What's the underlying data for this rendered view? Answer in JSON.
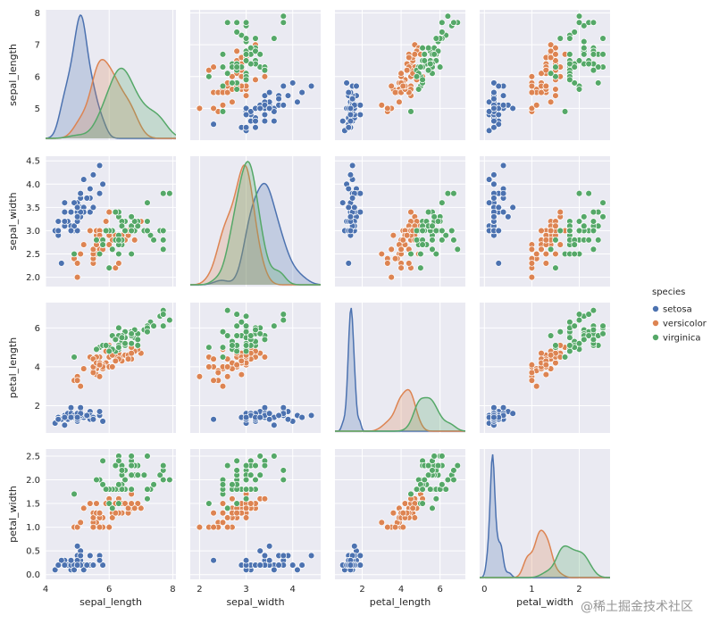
{
  "chart_data": {
    "type": "pairplot",
    "variables": [
      "sepal_length",
      "sepal_width",
      "petal_length",
      "petal_width"
    ],
    "ranges": {
      "sepal_length": [
        4.0,
        8.1
      ],
      "sepal_width": [
        1.8,
        4.6
      ],
      "petal_length": [
        0.6,
        7.3
      ],
      "petal_width": [
        -0.1,
        2.65
      ]
    },
    "kde_x_ranges": {
      "sepal_length": [
        3.8,
        8.3
      ],
      "sepal_width": [
        1.5,
        4.85
      ],
      "petal_length": [
        0.6,
        7.5
      ],
      "petal_width": [
        -0.1,
        2.95
      ]
    },
    "ticks": {
      "sepal_length": [
        4,
        6,
        8
      ],
      "sepal_width": [
        2,
        3,
        4,
        5
      ],
      "petal_length": [
        2,
        4,
        6,
        8
      ],
      "petal_width": [
        0,
        1,
        2
      ]
    },
    "y_ticks": {
      "sepal_length": [
        "5",
        "6",
        "7",
        "8"
      ],
      "sepal_width": [
        "2.0",
        "2.5",
        "3.0",
        "3.5",
        "4.0",
        "4.5"
      ],
      "petal_length": [
        "2",
        "4",
        "6"
      ],
      "petal_width": [
        "0.0",
        "0.5",
        "1.0",
        "1.5",
        "2.0",
        "2.5"
      ]
    },
    "legend": {
      "title": "species",
      "placement": "center-right",
      "entries": [
        "setosa",
        "versicolor",
        "virginica"
      ]
    },
    "species_colors": {
      "setosa": "#4c72b0",
      "versicolor": "#dd8452",
      "virginica": "#55a868"
    },
    "grid": true,
    "data": {
      "setosa": [
        [
          5.1,
          3.5,
          1.4,
          0.2
        ],
        [
          4.9,
          3.0,
          1.4,
          0.2
        ],
        [
          4.7,
          3.2,
          1.3,
          0.2
        ],
        [
          4.6,
          3.1,
          1.5,
          0.2
        ],
        [
          5.0,
          3.6,
          1.4,
          0.2
        ],
        [
          5.4,
          3.9,
          1.7,
          0.4
        ],
        [
          4.6,
          3.4,
          1.4,
          0.3
        ],
        [
          5.0,
          3.4,
          1.5,
          0.2
        ],
        [
          4.4,
          2.9,
          1.4,
          0.2
        ],
        [
          4.9,
          3.1,
          1.5,
          0.1
        ],
        [
          5.4,
          3.7,
          1.5,
          0.2
        ],
        [
          4.8,
          3.4,
          1.6,
          0.2
        ],
        [
          4.8,
          3.0,
          1.4,
          0.1
        ],
        [
          4.3,
          3.0,
          1.1,
          0.1
        ],
        [
          5.8,
          4.0,
          1.2,
          0.2
        ],
        [
          5.7,
          4.4,
          1.5,
          0.4
        ],
        [
          5.4,
          3.9,
          1.3,
          0.4
        ],
        [
          5.1,
          3.5,
          1.4,
          0.3
        ],
        [
          5.7,
          3.8,
          1.7,
          0.3
        ],
        [
          5.1,
          3.8,
          1.5,
          0.3
        ],
        [
          5.4,
          3.4,
          1.7,
          0.2
        ],
        [
          5.1,
          3.7,
          1.5,
          0.4
        ],
        [
          4.6,
          3.6,
          1.0,
          0.2
        ],
        [
          5.1,
          3.3,
          1.7,
          0.5
        ],
        [
          4.8,
          3.4,
          1.9,
          0.2
        ],
        [
          5.0,
          3.0,
          1.6,
          0.2
        ],
        [
          5.0,
          3.4,
          1.6,
          0.4
        ],
        [
          5.2,
          3.5,
          1.5,
          0.2
        ],
        [
          5.2,
          3.4,
          1.4,
          0.2
        ],
        [
          4.7,
          3.2,
          1.6,
          0.2
        ],
        [
          4.8,
          3.1,
          1.6,
          0.2
        ],
        [
          5.4,
          3.4,
          1.5,
          0.4
        ],
        [
          5.2,
          4.1,
          1.5,
          0.1
        ],
        [
          5.5,
          4.2,
          1.4,
          0.2
        ],
        [
          4.9,
          3.1,
          1.5,
          0.2
        ],
        [
          5.0,
          3.2,
          1.2,
          0.2
        ],
        [
          5.5,
          3.5,
          1.3,
          0.2
        ],
        [
          4.9,
          3.6,
          1.4,
          0.1
        ],
        [
          4.4,
          3.0,
          1.3,
          0.2
        ],
        [
          5.1,
          3.4,
          1.5,
          0.2
        ],
        [
          5.0,
          3.5,
          1.3,
          0.3
        ],
        [
          4.5,
          2.3,
          1.3,
          0.3
        ],
        [
          4.4,
          3.2,
          1.3,
          0.2
        ],
        [
          5.0,
          3.5,
          1.6,
          0.6
        ],
        [
          5.1,
          3.8,
          1.9,
          0.4
        ],
        [
          4.8,
          3.0,
          1.4,
          0.3
        ],
        [
          5.1,
          3.8,
          1.6,
          0.2
        ],
        [
          4.6,
          3.2,
          1.4,
          0.2
        ],
        [
          5.3,
          3.7,
          1.5,
          0.2
        ],
        [
          5.0,
          3.3,
          1.4,
          0.2
        ]
      ],
      "versicolor": [
        [
          7.0,
          3.2,
          4.7,
          1.4
        ],
        [
          6.4,
          3.2,
          4.5,
          1.5
        ],
        [
          6.9,
          3.1,
          4.9,
          1.5
        ],
        [
          5.5,
          2.3,
          4.0,
          1.3
        ],
        [
          6.5,
          2.8,
          4.6,
          1.5
        ],
        [
          5.7,
          2.8,
          4.5,
          1.3
        ],
        [
          6.3,
          3.3,
          4.7,
          1.6
        ],
        [
          4.9,
          2.4,
          3.3,
          1.0
        ],
        [
          6.6,
          2.9,
          4.6,
          1.3
        ],
        [
          5.2,
          2.7,
          3.9,
          1.4
        ],
        [
          5.0,
          2.0,
          3.5,
          1.0
        ],
        [
          5.9,
          3.0,
          4.2,
          1.5
        ],
        [
          6.0,
          2.2,
          4.0,
          1.0
        ],
        [
          6.1,
          2.9,
          4.7,
          1.4
        ],
        [
          5.6,
          2.9,
          3.6,
          1.3
        ],
        [
          6.7,
          3.1,
          4.4,
          1.4
        ],
        [
          5.6,
          3.0,
          4.5,
          1.5
        ],
        [
          5.8,
          2.7,
          4.1,
          1.0
        ],
        [
          6.2,
          2.2,
          4.5,
          1.5
        ],
        [
          5.6,
          2.5,
          3.9,
          1.1
        ],
        [
          5.9,
          3.2,
          4.8,
          1.8
        ],
        [
          6.1,
          2.8,
          4.0,
          1.3
        ],
        [
          6.3,
          2.5,
          4.9,
          1.5
        ],
        [
          6.1,
          2.8,
          4.7,
          1.2
        ],
        [
          6.4,
          2.9,
          4.3,
          1.3
        ],
        [
          6.6,
          3.0,
          4.4,
          1.4
        ],
        [
          6.8,
          2.8,
          4.8,
          1.4
        ],
        [
          6.7,
          3.0,
          5.0,
          1.7
        ],
        [
          6.0,
          2.9,
          4.5,
          1.5
        ],
        [
          5.7,
          2.6,
          3.5,
          1.0
        ],
        [
          5.5,
          2.4,
          3.8,
          1.1
        ],
        [
          5.5,
          2.4,
          3.7,
          1.0
        ],
        [
          5.8,
          2.7,
          3.9,
          1.2
        ],
        [
          6.0,
          2.7,
          5.1,
          1.6
        ],
        [
          5.4,
          3.0,
          4.5,
          1.5
        ],
        [
          6.0,
          3.4,
          4.5,
          1.6
        ],
        [
          6.7,
          3.1,
          4.7,
          1.5
        ],
        [
          6.3,
          2.3,
          4.4,
          1.3
        ],
        [
          5.6,
          3.0,
          4.1,
          1.3
        ],
        [
          5.5,
          2.5,
          4.0,
          1.3
        ],
        [
          5.5,
          2.6,
          4.4,
          1.2
        ],
        [
          6.1,
          3.0,
          4.6,
          1.4
        ],
        [
          5.8,
          2.6,
          4.0,
          1.2
        ],
        [
          5.0,
          2.3,
          3.3,
          1.0
        ],
        [
          5.6,
          2.7,
          4.2,
          1.3
        ],
        [
          5.7,
          3.0,
          4.2,
          1.2
        ],
        [
          5.7,
          2.9,
          4.2,
          1.3
        ],
        [
          6.2,
          2.9,
          4.3,
          1.3
        ],
        [
          5.1,
          2.5,
          3.0,
          1.1
        ],
        [
          5.7,
          2.8,
          4.1,
          1.3
        ]
      ],
      "virginica": [
        [
          6.3,
          3.3,
          6.0,
          2.5
        ],
        [
          5.8,
          2.7,
          5.1,
          1.9
        ],
        [
          7.1,
          3.0,
          5.9,
          2.1
        ],
        [
          6.3,
          2.9,
          5.6,
          1.8
        ],
        [
          6.5,
          3.0,
          5.8,
          2.2
        ],
        [
          7.6,
          3.0,
          6.6,
          2.1
        ],
        [
          4.9,
          2.5,
          4.5,
          1.7
        ],
        [
          7.3,
          2.9,
          6.3,
          1.8
        ],
        [
          6.7,
          2.5,
          5.8,
          1.8
        ],
        [
          7.2,
          3.6,
          6.1,
          2.5
        ],
        [
          6.5,
          3.2,
          5.1,
          2.0
        ],
        [
          6.4,
          2.7,
          5.3,
          1.9
        ],
        [
          6.8,
          3.0,
          5.5,
          2.1
        ],
        [
          5.7,
          2.5,
          5.0,
          2.0
        ],
        [
          5.8,
          2.8,
          5.1,
          2.4
        ],
        [
          6.4,
          3.2,
          5.3,
          2.3
        ],
        [
          6.5,
          3.0,
          5.5,
          1.8
        ],
        [
          7.7,
          3.8,
          6.7,
          2.2
        ],
        [
          7.7,
          2.6,
          6.9,
          2.3
        ],
        [
          6.0,
          2.2,
          5.0,
          1.5
        ],
        [
          6.9,
          3.2,
          5.7,
          2.3
        ],
        [
          5.6,
          2.8,
          4.9,
          2.0
        ],
        [
          7.7,
          2.8,
          6.7,
          2.0
        ],
        [
          6.3,
          2.7,
          4.9,
          1.8
        ],
        [
          6.7,
          3.3,
          5.7,
          2.1
        ],
        [
          7.2,
          3.2,
          6.0,
          1.8
        ],
        [
          6.2,
          2.8,
          4.8,
          1.8
        ],
        [
          6.1,
          3.0,
          4.9,
          1.8
        ],
        [
          6.4,
          2.8,
          5.6,
          2.1
        ],
        [
          7.2,
          3.0,
          5.8,
          1.6
        ],
        [
          7.4,
          2.8,
          6.1,
          1.9
        ],
        [
          7.9,
          3.8,
          6.4,
          2.0
        ],
        [
          6.4,
          2.8,
          5.6,
          2.2
        ],
        [
          6.3,
          2.8,
          5.1,
          1.5
        ],
        [
          6.1,
          2.6,
          5.6,
          1.4
        ],
        [
          7.7,
          3.0,
          6.1,
          2.3
        ],
        [
          6.3,
          3.4,
          5.6,
          2.4
        ],
        [
          6.4,
          3.1,
          5.5,
          1.8
        ],
        [
          6.0,
          3.0,
          4.8,
          1.8
        ],
        [
          6.9,
          3.1,
          5.4,
          2.1
        ],
        [
          6.7,
          3.1,
          5.6,
          2.4
        ],
        [
          6.9,
          3.1,
          5.1,
          2.3
        ],
        [
          5.8,
          2.7,
          5.1,
          1.9
        ],
        [
          6.8,
          3.2,
          5.9,
          2.3
        ],
        [
          6.7,
          3.3,
          5.7,
          2.5
        ],
        [
          6.7,
          3.0,
          5.2,
          2.3
        ],
        [
          6.3,
          2.5,
          5.0,
          1.9
        ],
        [
          6.5,
          3.0,
          5.2,
          2.0
        ],
        [
          6.2,
          3.4,
          5.4,
          2.3
        ],
        [
          5.9,
          3.0,
          5.1,
          1.8
        ]
      ]
    }
  },
  "watermark": "@稀土掘金技术社区"
}
